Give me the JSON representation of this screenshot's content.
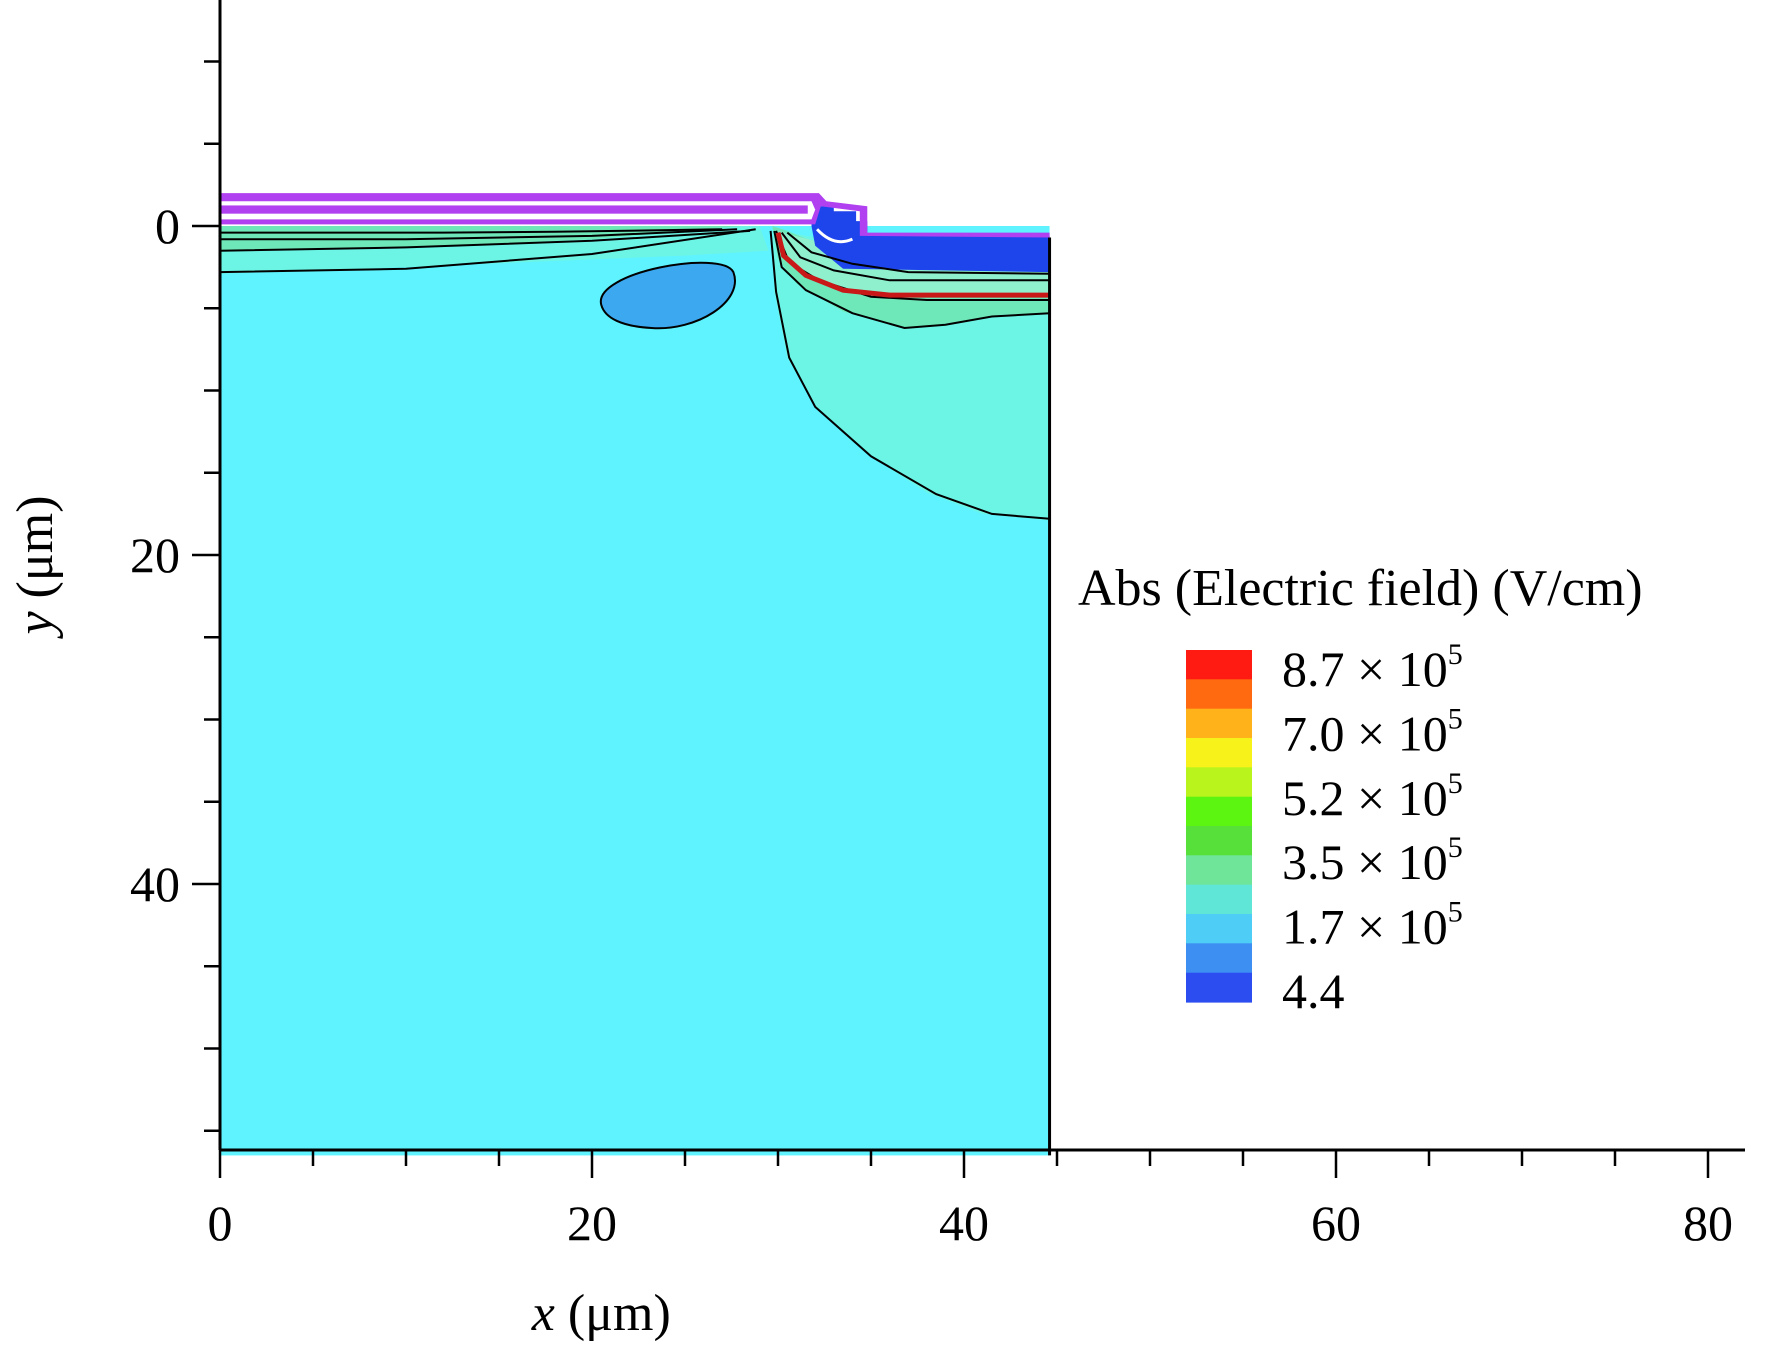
{
  "chart_data": {
    "type": "heatmap",
    "title": "",
    "xlabel": {
      "var": "x",
      "unit": " (μm)"
    },
    "ylabel": {
      "var": "y",
      "unit": " (μm)"
    },
    "x_ticks": [
      "0",
      "20",
      "40",
      "60",
      "80"
    ],
    "y_ticks": [
      "0",
      "20",
      "40"
    ],
    "xlim": [
      0,
      82
    ],
    "ylim": [
      56.5,
      -14
    ],
    "y_direction": "down",
    "device_extent": {
      "x": [
        0,
        44.6
      ],
      "y": [
        0,
        56.5
      ]
    },
    "colorbar": {
      "title": "Abs (Electric field) (V/cm)",
      "entries": [
        {
          "mantissa": "8.7",
          "times": "×",
          "base": "10",
          "exp": "5"
        },
        {
          "mantissa": "7.0",
          "times": "×",
          "base": "10",
          "exp": "5"
        },
        {
          "mantissa": "5.2",
          "times": "×",
          "base": "10",
          "exp": "5"
        },
        {
          "mantissa": "3.5",
          "times": "×",
          "base": "10",
          "exp": "5"
        },
        {
          "mantissa": "1.7",
          "times": "×",
          "base": "10",
          "exp": "5"
        },
        {
          "mantissa": "4.4",
          "times": "",
          "base": "",
          "exp": ""
        }
      ],
      "colors": [
        "#ff1a12",
        "#ff6a10",
        "#ffb21a",
        "#f6f21a",
        "#b9f51d",
        "#5cf411",
        "#58e03a",
        "#6fe59a",
        "#5fe6d6",
        "#4ecdf6",
        "#3d8ff2",
        "#2c4ef0"
      ],
      "placement": "right"
    },
    "colors": {
      "bulk": "#5ef3ff",
      "near_surface": "#6cf5e5",
      "surface_band_1": "#6ee8b8",
      "surface_band_2": "#8ef0cc",
      "pocket": "#3ca8ef",
      "dielectric": "#1e44ec",
      "oxide_edge": "#b040f0",
      "field_plate": "#ffffff",
      "peak_line": "#c81818"
    }
  }
}
